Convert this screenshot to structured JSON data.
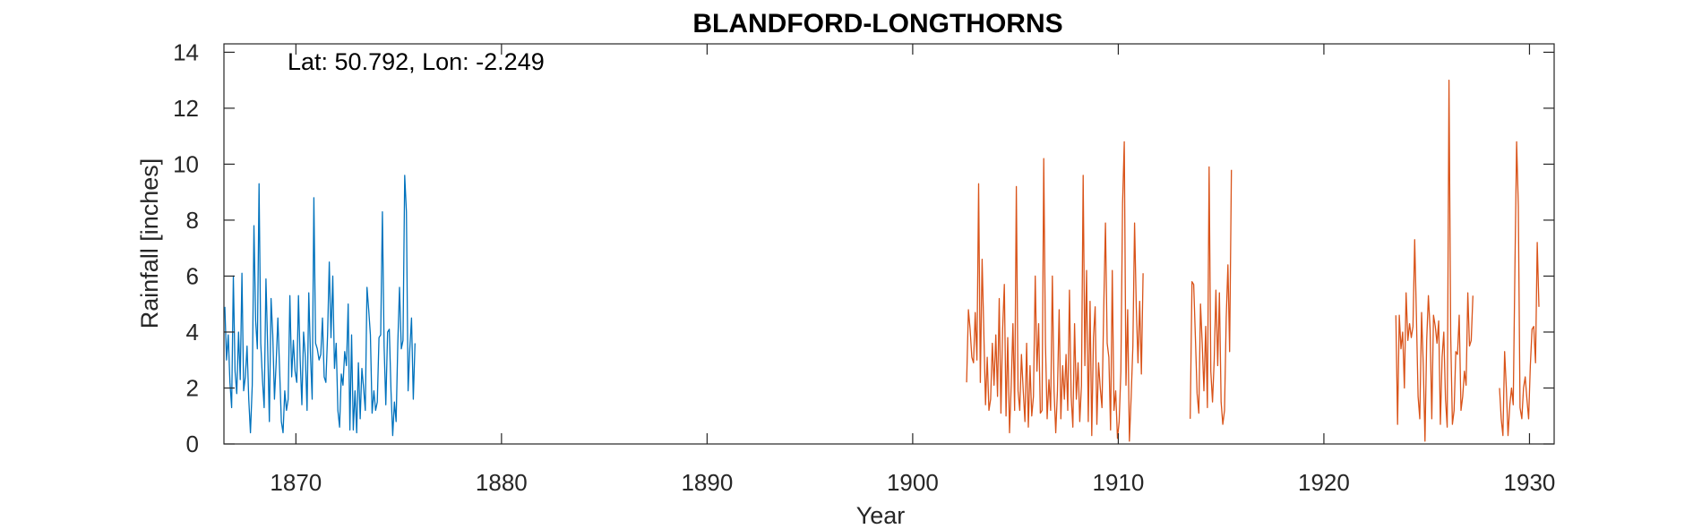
{
  "chart_data": {
    "type": "line",
    "title": "BLANDFORD-LONGTHORNS",
    "xlabel": "Year",
    "ylabel": "Rainfall [inches]",
    "annotation": "Lat: 50.792, Lon: -2.249",
    "xlim": [
      1866.5,
      1931.2
    ],
    "ylim": [
      0,
      14.3
    ],
    "xticks": [
      1870,
      1880,
      1890,
      1900,
      1910,
      1920,
      1930
    ],
    "yticks": [
      0,
      2,
      4,
      6,
      8,
      10,
      12,
      14
    ],
    "grid": false,
    "legend": "none",
    "series": [
      {
        "color": "#0072BD",
        "segments": [
          {
            "x0": 1866.5417,
            "dx": 0.083333,
            "values": [
              4.9,
              3.0,
              3.9,
              2.2,
              1.3,
              6.0,
              2.6,
              1.8,
              4.0,
              2.3,
              6.1,
              1.9,
              2.4,
              3.5,
              1.6,
              0.4,
              2.1,
              7.8,
              4.4,
              3.4,
              9.3,
              3.6,
              2.3,
              1.3,
              5.9,
              3.5,
              0.8,
              5.2,
              3.9,
              1.6,
              2.9,
              4.5,
              2.6,
              0.8,
              0.4,
              1.9,
              1.2,
              1.6,
              5.3,
              2.4,
              3.7,
              2.6,
              2.2,
              5.3,
              3.0,
              1.4,
              4.0,
              3.1,
              1.2,
              5.4,
              3.2,
              1.6,
              8.8,
              3.6,
              3.4,
              3.0,
              3.2,
              4.5,
              2.4,
              2.2,
              3.9,
              6.5,
              3.8,
              6.0,
              2.7,
              3.6,
              1.2,
              0.6,
              2.5,
              2.1,
              3.3,
              2.8,
              5.0,
              0.5,
              3.9,
              0.5,
              1.9,
              0.4,
              2.9,
              0.9,
              2.7,
              2.0,
              1.2,
              5.6,
              4.8,
              3.9,
              1.1,
              1.9,
              1.2,
              1.5,
              3.8,
              3.9,
              8.3,
              3.5,
              1.4,
              4.0,
              4.1,
              1.9,
              0.3,
              1.5,
              0.8,
              3.6,
              5.6,
              3.4,
              3.7,
              9.6,
              8.3,
              1.9,
              3.4,
              4.5,
              1.6,
              3.6
            ]
          }
        ]
      },
      {
        "color": "#D95319",
        "segments": [
          {
            "x0": 1902.625,
            "dx": 0.083333,
            "values": [
              2.2,
              4.8,
              4.1,
              3.1,
              2.9,
              4.7,
              3.0,
              9.3,
              2.2,
              6.6,
              4.0,
              1.4,
              3.1,
              1.2,
              1.6,
              3.6,
              2.1,
              3.9,
              1.7,
              5.2,
              1.1,
              4.1,
              5.7,
              1.0,
              3.8,
              0.4,
              2.1,
              4.3,
              1.2,
              9.2,
              1.9,
              1.2,
              3.2,
              1.9,
              0.8,
              3.6,
              0.6,
              2.8,
              1.0,
              1.7,
              6.0,
              2.6,
              4.3,
              1.1,
              1.2,
              10.2,
              3.6,
              0.9,
              2.3,
              1.2,
              6.0,
              1.9,
              0.4,
              1.9,
              4.8,
              0.9,
              2.8,
              1.6,
              3.2,
              1.2,
              5.5,
              1.7,
              0.6,
              4.3,
              1.6,
              2.9,
              0.8,
              2.1,
              9.6,
              2.8,
              6.2,
              0.8,
              5.1,
              0.3,
              3.8,
              4.9,
              0.7,
              2.9,
              2.0,
              1.3,
              4.9,
              7.9,
              3.6,
              3.1,
              0.5,
              6.2,
              1.2,
              1.9,
              0.2,
              0.8,
              2.6,
              8.6,
              10.8,
              2.1,
              4.8,
              0.1,
              1.7,
              3.5,
              7.9,
              4.9,
              2.9,
              5.1,
              2.5,
              6.1
            ]
          },
          {
            "x0": 1913.5,
            "dx": 0.083333,
            "values": [
              0.9,
              5.8,
              5.7,
              3.8,
              1.8,
              1.1,
              5.0,
              3.6,
              1.9,
              4.2,
              1.3,
              9.9,
              2.6,
              1.5,
              3.0,
              5.5,
              2.8,
              5.4,
              1.5,
              0.7,
              1.2,
              4.5,
              6.4,
              3.3,
              9.8
            ]
          },
          {
            "x0": 1923.5,
            "dx": 0.083333,
            "values": [
              4.6,
              0.7,
              4.6,
              3.4,
              4.0,
              2.0,
              5.4,
              3.7,
              4.3,
              3.8,
              4.2,
              7.3,
              4.6,
              1.7,
              0.9,
              4.7,
              2.8,
              0.1,
              3.7,
              5.3,
              4.1,
              0.9,
              4.6,
              4.2,
              3.6,
              4.4,
              0.7,
              3.1,
              4.0,
              1.6,
              0.6,
              13.0,
              3.9,
              0.7,
              1.2,
              3.3,
              3.2,
              4.6,
              1.2,
              1.7,
              2.6,
              2.1,
              5.4,
              3.5,
              3.7,
              5.3
            ]
          },
          {
            "x0": 1928.5417,
            "dx": 0.083333,
            "values": [
              2.0,
              0.9,
              0.3,
              3.3,
              2.0,
              0.3,
              1.4,
              2.0,
              1.4,
              6.3,
              10.8,
              8.5,
              1.3,
              0.9,
              2.0,
              2.4,
              1.6,
              0.9,
              2.8,
              4.1,
              4.2,
              2.9,
              7.2,
              4.9
            ]
          }
        ]
      }
    ]
  }
}
